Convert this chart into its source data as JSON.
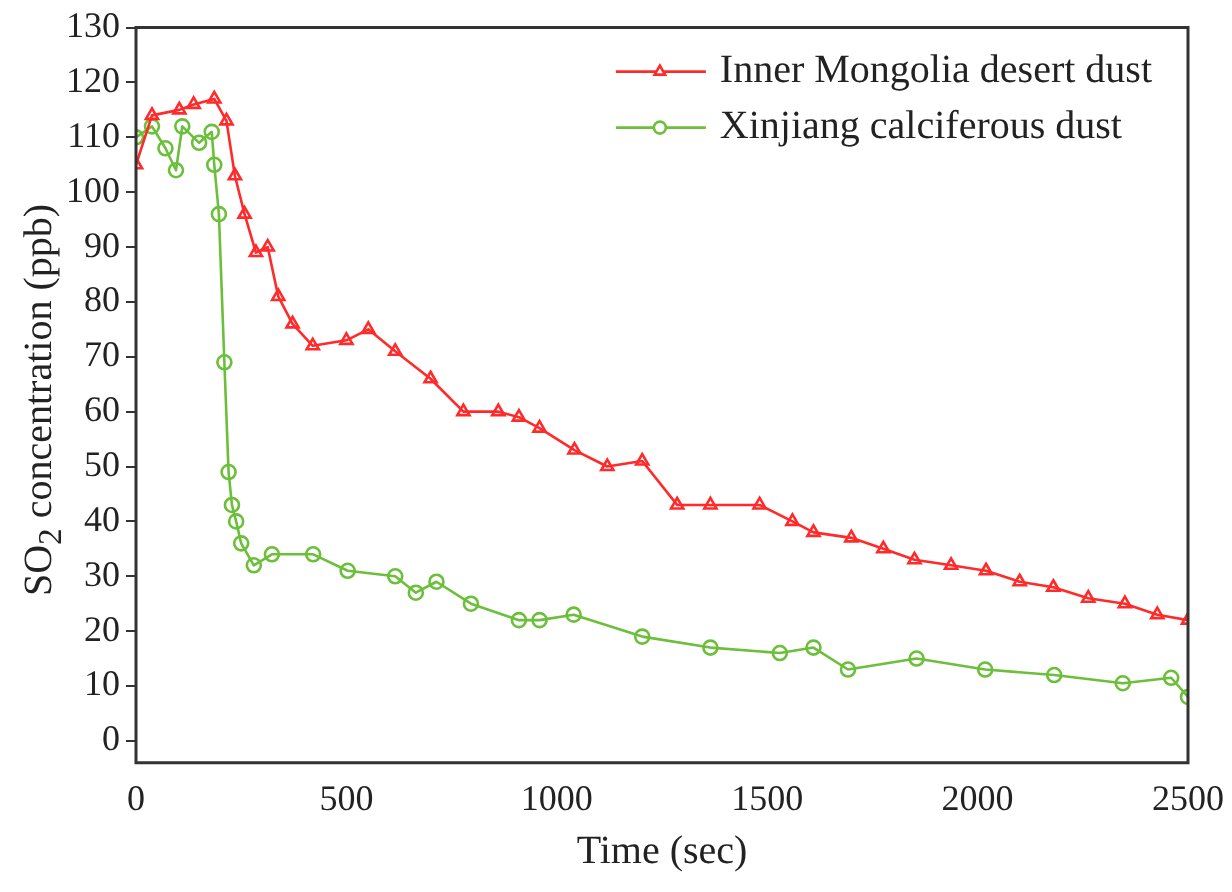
{
  "chart_data": {
    "type": "line",
    "xlabel": "Time (sec)",
    "ylabel": "SO$_{2}$ concentration (ppb)",
    "xlim": [
      0,
      2500
    ],
    "xticks": [
      0,
      500,
      1000,
      1500,
      2000,
      2500
    ],
    "ylim": [
      -4,
      130
    ],
    "yticks": [
      0,
      10,
      20,
      30,
      40,
      50,
      60,
      70,
      80,
      90,
      100,
      110,
      120,
      130
    ],
    "grid": false,
    "legend": "top right",
    "line_style": "solid",
    "series": [
      {
        "name": "Inner Mongolia desert dust",
        "color": "#ff2a2a",
        "marker": "triangle",
        "x": [
          0,
          38,
          103,
          137,
          186,
          215,
          235,
          258,
          285,
          313,
          338,
          372,
          420,
          500,
          552,
          616,
          700,
          778,
          861,
          910,
          959,
          1042,
          1120,
          1203,
          1286,
          1365,
          1482,
          1560,
          1610,
          1700,
          1776,
          1850,
          1937,
          2020,
          2100,
          2180,
          2263,
          2350,
          2427,
          2500
        ],
        "values": [
          105,
          114,
          115,
          116,
          117,
          113,
          103,
          96,
          89,
          90,
          81,
          76,
          72,
          73,
          75,
          71,
          66,
          60,
          60,
          59,
          57,
          53,
          50,
          51,
          43,
          43,
          43,
          40,
          38,
          37,
          35,
          33,
          32,
          31,
          29,
          28,
          26,
          25,
          23,
          22
        ]
      },
      {
        "name": "Xinjiang calciferous dust",
        "color": "#6cbf3a",
        "marker": "circle",
        "x": [
          0,
          38,
          70,
          95,
          110,
          150,
          180,
          186,
          197,
          210,
          220,
          228,
          238,
          250,
          280,
          323,
          421,
          503,
          616,
          665,
          714,
          796,
          910,
          959,
          1040,
          1203,
          1365,
          1530,
          1610,
          1692,
          1855,
          2018,
          2182,
          2345,
          2460,
          2500
        ],
        "values": [
          110,
          112,
          108,
          104,
          112,
          109,
          111,
          105,
          96,
          69,
          49,
          43,
          40,
          36,
          32,
          34,
          34,
          31,
          30,
          27,
          29,
          25,
          22,
          22,
          23,
          19,
          17,
          16,
          17,
          13,
          15,
          13,
          12,
          10.5,
          11.5,
          8
        ]
      }
    ]
  }
}
